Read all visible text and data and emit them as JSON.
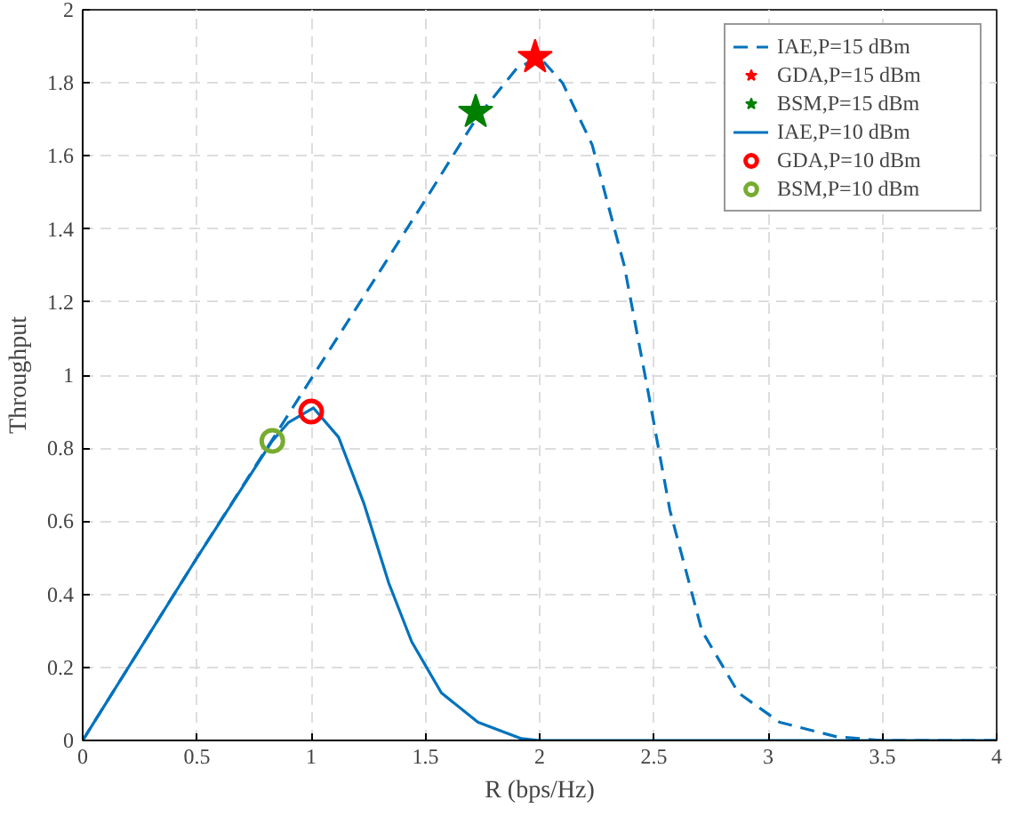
{
  "chart_data": {
    "type": "line",
    "xlabel": "R (bps/Hz)",
    "ylabel": "Throughput",
    "xlim": [
      0,
      4
    ],
    "ylim": [
      0,
      2
    ],
    "xticks": [
      0,
      0.5,
      1,
      1.5,
      2,
      2.5,
      3,
      3.5,
      4
    ],
    "yticks": [
      0,
      0.2,
      0.4,
      0.6,
      0.8,
      1,
      1.2,
      1.4,
      1.6,
      1.8,
      2
    ],
    "grid": true,
    "legend": "top right",
    "series": [
      {
        "name": "IAE,P=15 dBm",
        "line_style": "dashed",
        "marker": "none",
        "color": "#0072bd",
        "x": [
          0,
          0.5,
          1,
          1.5,
          1.72,
          1.9,
          2.0,
          2.1,
          2.23,
          2.37,
          2.47,
          2.57,
          2.71,
          2.87,
          3.05,
          3.3,
          3.5,
          4
        ],
        "values": [
          0,
          0.5,
          0.99,
          1.48,
          1.7,
          1.84,
          1.87,
          1.8,
          1.63,
          1.3,
          0.97,
          0.63,
          0.3,
          0.13,
          0.05,
          0.01,
          0,
          0
        ]
      },
      {
        "name": "GDA,P=15 dBm",
        "type": "scatter",
        "marker": "star",
        "color": "#ff0000",
        "x": [
          1.98
        ],
        "values": [
          1.87
        ]
      },
      {
        "name": "BSM,P=15 dBm",
        "type": "scatter",
        "marker": "star",
        "color": "#008000",
        "x": [
          1.72
        ],
        "values": [
          1.72
        ]
      },
      {
        "name": "IAE,P=10 dBm",
        "line_style": "solid",
        "marker": "none",
        "color": "#0072bd",
        "x": [
          0,
          0.5,
          0.83,
          0.9,
          1.01,
          1.12,
          1.23,
          1.34,
          1.44,
          1.57,
          1.73,
          1.92,
          2.0,
          4
        ],
        "values": [
          0,
          0.5,
          0.82,
          0.87,
          0.91,
          0.83,
          0.65,
          0.43,
          0.27,
          0.13,
          0.05,
          0.005,
          0,
          0
        ]
      },
      {
        "name": "GDA,P=10 dBm",
        "type": "scatter",
        "marker": "circle",
        "color": "#ff0000",
        "x": [
          1.0
        ],
        "values": [
          0.9
        ]
      },
      {
        "name": "BSM,P=10 dBm",
        "type": "scatter",
        "marker": "circle",
        "color": "#77ac30",
        "x": [
          0.83
        ],
        "values": [
          0.82
        ]
      }
    ]
  }
}
